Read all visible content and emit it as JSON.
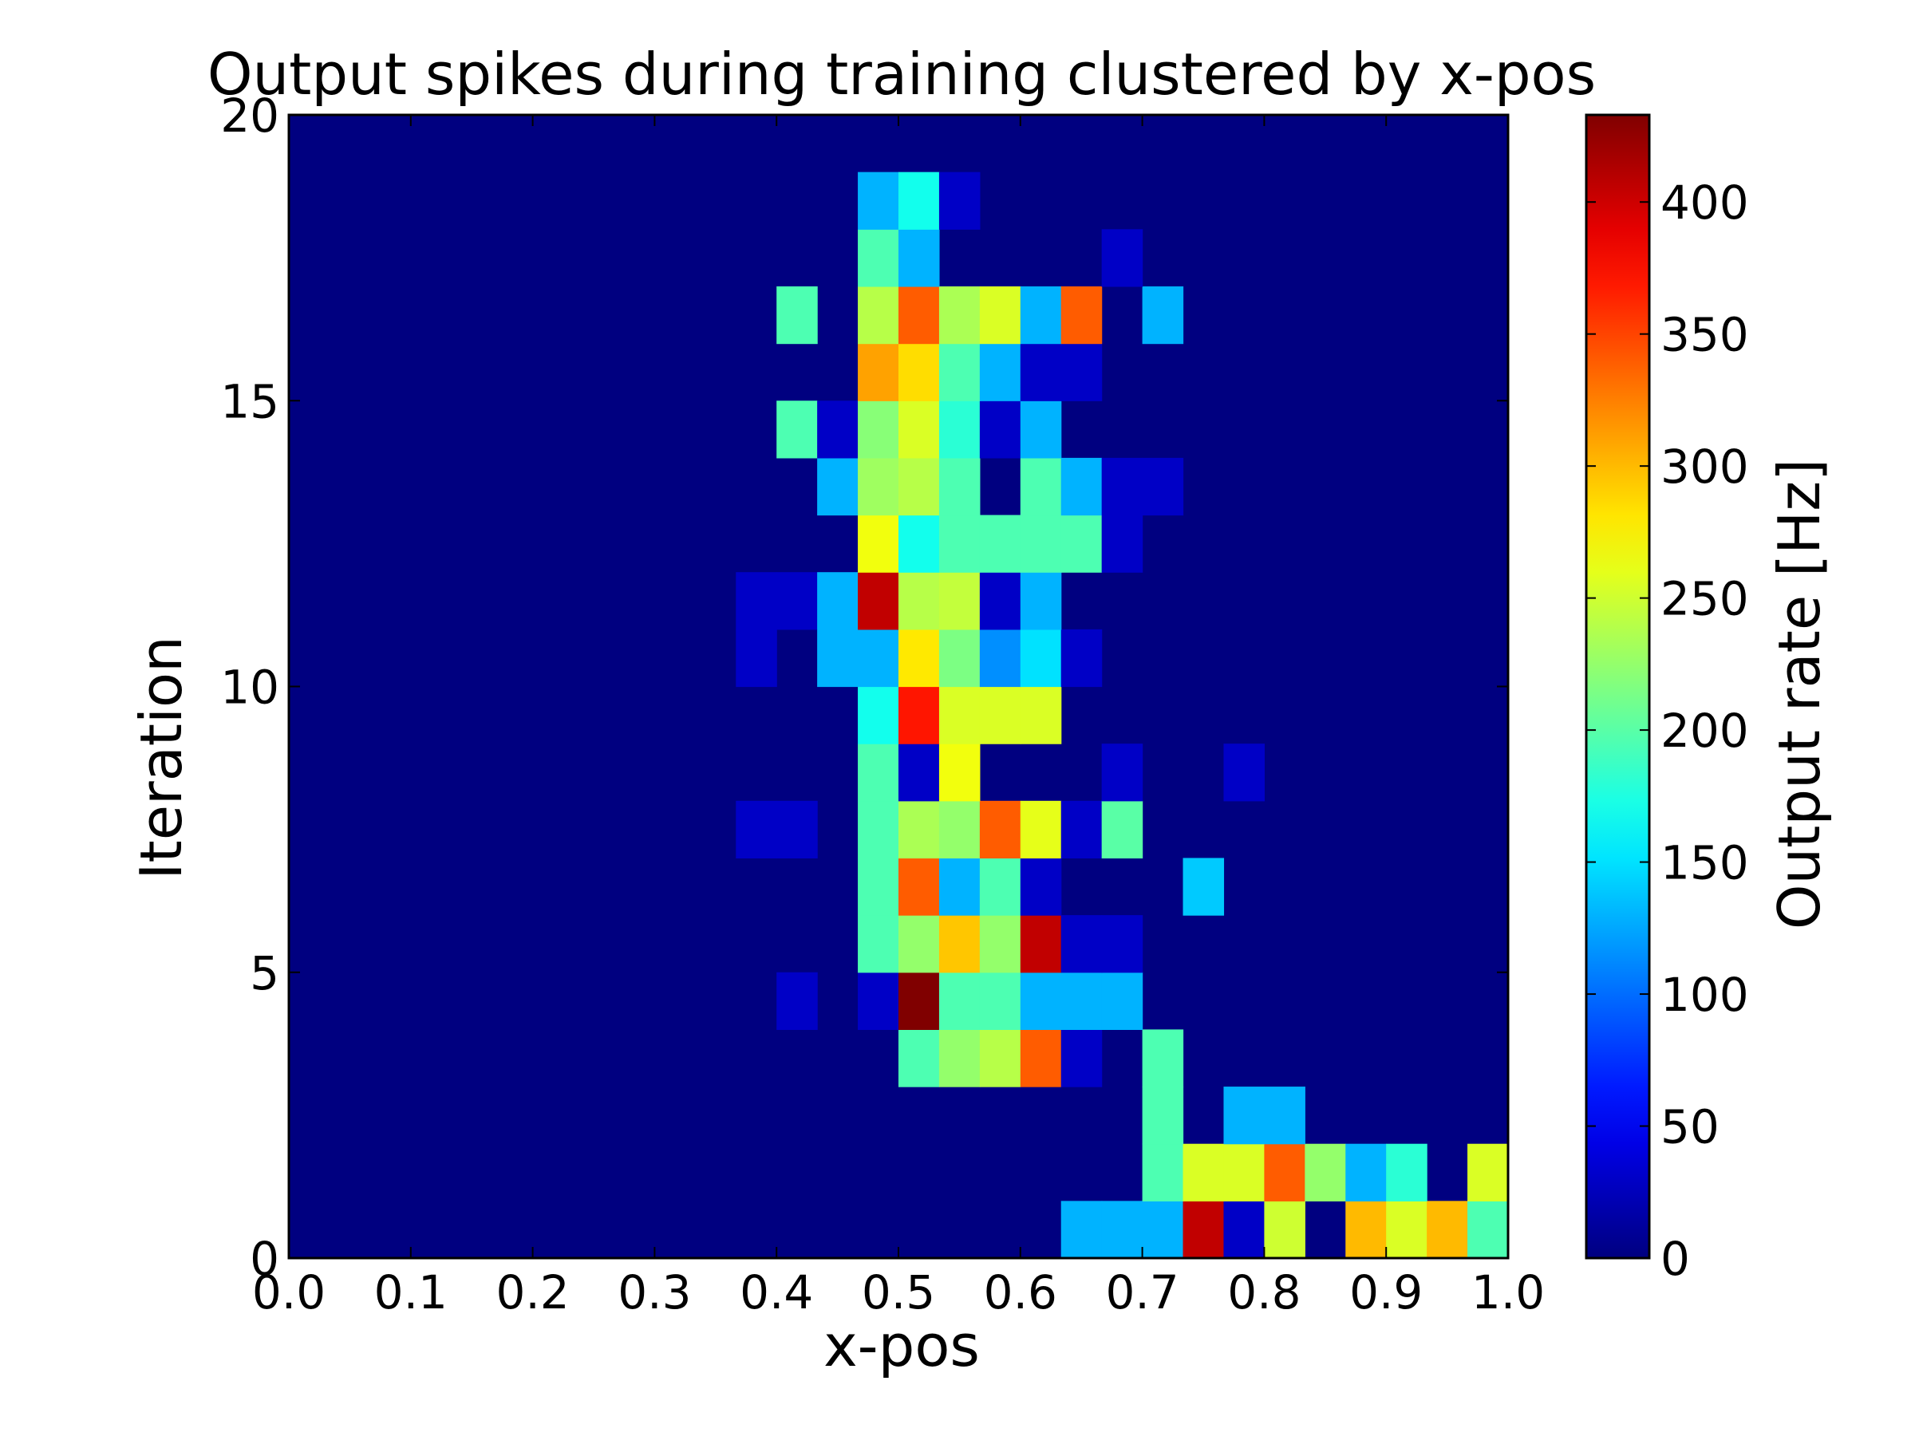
{
  "chart_data": {
    "type": "heatmap",
    "title": "Output spikes during training clustered by x-pos",
    "xlabel": "x-pos",
    "ylabel": "Iteration",
    "xlim": [
      0.0,
      1.0
    ],
    "ylim": [
      0,
      20
    ],
    "x_ticks": [
      "0.0",
      "0.1",
      "0.2",
      "0.3",
      "0.4",
      "0.5",
      "0.6",
      "0.7",
      "0.8",
      "0.9",
      "1.0"
    ],
    "y_ticks": [
      "0",
      "5",
      "10",
      "15",
      "20"
    ],
    "x_tick_values": [
      0.0,
      0.1,
      0.2,
      0.3,
      0.4,
      0.5,
      0.6,
      0.7,
      0.8,
      0.9,
      1.0
    ],
    "y_tick_values": [
      0,
      5,
      10,
      15,
      20
    ],
    "columns": 30,
    "rows": 20,
    "colormap": "jet",
    "colorbar": {
      "label": "Output rate [Hz]",
      "vmin": 0,
      "vmax": 433,
      "ticks": [
        "0",
        "50",
        "100",
        "150",
        "200",
        "250",
        "300",
        "350",
        "400"
      ],
      "tick_values": [
        0,
        50,
        100,
        150,
        200,
        250,
        300,
        350,
        400
      ]
    },
    "grid": false,
    "background_value": 0,
    "cells_note_units": "row = iteration index (0 = bottom), col = x-pos bin index (0..29), value = output rate in Hz",
    "cells": [
      {
        "row": 0,
        "col": 19,
        "value": 130
      },
      {
        "row": 0,
        "col": 20,
        "value": 130
      },
      {
        "row": 0,
        "col": 21,
        "value": 130
      },
      {
        "row": 0,
        "col": 22,
        "value": 405
      },
      {
        "row": 0,
        "col": 23,
        "value": 30
      },
      {
        "row": 0,
        "col": 24,
        "value": 250
      },
      {
        "row": 0,
        "col": 26,
        "value": 300
      },
      {
        "row": 0,
        "col": 27,
        "value": 255
      },
      {
        "row": 0,
        "col": 28,
        "value": 300
      },
      {
        "row": 0,
        "col": 29,
        "value": 195
      },
      {
        "row": 1,
        "col": 21,
        "value": 195
      },
      {
        "row": 1,
        "col": 22,
        "value": 255
      },
      {
        "row": 1,
        "col": 23,
        "value": 255
      },
      {
        "row": 1,
        "col": 24,
        "value": 340
      },
      {
        "row": 1,
        "col": 25,
        "value": 225
      },
      {
        "row": 1,
        "col": 26,
        "value": 130
      },
      {
        "row": 1,
        "col": 27,
        "value": 180
      },
      {
        "row": 1,
        "col": 29,
        "value": 255
      },
      {
        "row": 2,
        "col": 21,
        "value": 195
      },
      {
        "row": 2,
        "col": 23,
        "value": 130
      },
      {
        "row": 2,
        "col": 24,
        "value": 130
      },
      {
        "row": 3,
        "col": 15,
        "value": 195
      },
      {
        "row": 3,
        "col": 16,
        "value": 225
      },
      {
        "row": 3,
        "col": 17,
        "value": 240
      },
      {
        "row": 3,
        "col": 18,
        "value": 340
      },
      {
        "row": 3,
        "col": 19,
        "value": 30
      },
      {
        "row": 3,
        "col": 21,
        "value": 195
      },
      {
        "row": 4,
        "col": 12,
        "value": 30
      },
      {
        "row": 4,
        "col": 14,
        "value": 30
      },
      {
        "row": 4,
        "col": 15,
        "value": 433
      },
      {
        "row": 4,
        "col": 16,
        "value": 195
      },
      {
        "row": 4,
        "col": 17,
        "value": 195
      },
      {
        "row": 4,
        "col": 18,
        "value": 130
      },
      {
        "row": 4,
        "col": 19,
        "value": 130
      },
      {
        "row": 4,
        "col": 20,
        "value": 130
      },
      {
        "row": 5,
        "col": 14,
        "value": 195
      },
      {
        "row": 5,
        "col": 15,
        "value": 225
      },
      {
        "row": 5,
        "col": 16,
        "value": 295
      },
      {
        "row": 5,
        "col": 17,
        "value": 225
      },
      {
        "row": 5,
        "col": 18,
        "value": 405
      },
      {
        "row": 5,
        "col": 19,
        "value": 30
      },
      {
        "row": 5,
        "col": 20,
        "value": 30
      },
      {
        "row": 6,
        "col": 14,
        "value": 195
      },
      {
        "row": 6,
        "col": 15,
        "value": 340
      },
      {
        "row": 6,
        "col": 16,
        "value": 130
      },
      {
        "row": 6,
        "col": 17,
        "value": 195
      },
      {
        "row": 6,
        "col": 18,
        "value": 30
      },
      {
        "row": 6,
        "col": 22,
        "value": 140
      },
      {
        "row": 7,
        "col": 11,
        "value": 30
      },
      {
        "row": 7,
        "col": 12,
        "value": 30
      },
      {
        "row": 7,
        "col": 14,
        "value": 195
      },
      {
        "row": 7,
        "col": 15,
        "value": 235
      },
      {
        "row": 7,
        "col": 16,
        "value": 225
      },
      {
        "row": 7,
        "col": 17,
        "value": 340
      },
      {
        "row": 7,
        "col": 18,
        "value": 260
      },
      {
        "row": 7,
        "col": 19,
        "value": 30
      },
      {
        "row": 7,
        "col": 20,
        "value": 200
      },
      {
        "row": 8,
        "col": 14,
        "value": 195
      },
      {
        "row": 8,
        "col": 15,
        "value": 30
      },
      {
        "row": 8,
        "col": 16,
        "value": 265
      },
      {
        "row": 8,
        "col": 20,
        "value": 30
      },
      {
        "row": 8,
        "col": 23,
        "value": 30
      },
      {
        "row": 9,
        "col": 14,
        "value": 170
      },
      {
        "row": 9,
        "col": 15,
        "value": 370
      },
      {
        "row": 9,
        "col": 16,
        "value": 255
      },
      {
        "row": 9,
        "col": 17,
        "value": 255
      },
      {
        "row": 9,
        "col": 18,
        "value": 255
      },
      {
        "row": 10,
        "col": 11,
        "value": 30
      },
      {
        "row": 10,
        "col": 13,
        "value": 130
      },
      {
        "row": 10,
        "col": 14,
        "value": 130
      },
      {
        "row": 10,
        "col": 15,
        "value": 280
      },
      {
        "row": 10,
        "col": 16,
        "value": 215
      },
      {
        "row": 10,
        "col": 17,
        "value": 115
      },
      {
        "row": 10,
        "col": 18,
        "value": 150
      },
      {
        "row": 10,
        "col": 19,
        "value": 30
      },
      {
        "row": 11,
        "col": 11,
        "value": 30
      },
      {
        "row": 11,
        "col": 12,
        "value": 30
      },
      {
        "row": 11,
        "col": 13,
        "value": 130
      },
      {
        "row": 11,
        "col": 14,
        "value": 405
      },
      {
        "row": 11,
        "col": 15,
        "value": 240
      },
      {
        "row": 11,
        "col": 16,
        "value": 245
      },
      {
        "row": 11,
        "col": 17,
        "value": 30
      },
      {
        "row": 11,
        "col": 18,
        "value": 130
      },
      {
        "row": 12,
        "col": 14,
        "value": 265
      },
      {
        "row": 12,
        "col": 15,
        "value": 170
      },
      {
        "row": 12,
        "col": 16,
        "value": 195
      },
      {
        "row": 12,
        "col": 17,
        "value": 195
      },
      {
        "row": 12,
        "col": 18,
        "value": 195
      },
      {
        "row": 12,
        "col": 19,
        "value": 195
      },
      {
        "row": 12,
        "col": 20,
        "value": 30
      },
      {
        "row": 13,
        "col": 13,
        "value": 130
      },
      {
        "row": 13,
        "col": 14,
        "value": 230
      },
      {
        "row": 13,
        "col": 15,
        "value": 240
      },
      {
        "row": 13,
        "col": 16,
        "value": 195
      },
      {
        "row": 13,
        "col": 18,
        "value": 195
      },
      {
        "row": 13,
        "col": 19,
        "value": 130
      },
      {
        "row": 13,
        "col": 20,
        "value": 30
      },
      {
        "row": 13,
        "col": 21,
        "value": 30
      },
      {
        "row": 14,
        "col": 12,
        "value": 195
      },
      {
        "row": 14,
        "col": 13,
        "value": 30
      },
      {
        "row": 14,
        "col": 14,
        "value": 220
      },
      {
        "row": 14,
        "col": 15,
        "value": 255
      },
      {
        "row": 14,
        "col": 16,
        "value": 180
      },
      {
        "row": 14,
        "col": 17,
        "value": 30
      },
      {
        "row": 14,
        "col": 18,
        "value": 130
      },
      {
        "row": 15,
        "col": 14,
        "value": 310
      },
      {
        "row": 15,
        "col": 15,
        "value": 285
      },
      {
        "row": 15,
        "col": 16,
        "value": 195
      },
      {
        "row": 15,
        "col": 17,
        "value": 130
      },
      {
        "row": 15,
        "col": 18,
        "value": 30
      },
      {
        "row": 15,
        "col": 19,
        "value": 30
      },
      {
        "row": 16,
        "col": 12,
        "value": 195
      },
      {
        "row": 16,
        "col": 14,
        "value": 240
      },
      {
        "row": 16,
        "col": 15,
        "value": 340
      },
      {
        "row": 16,
        "col": 16,
        "value": 235
      },
      {
        "row": 16,
        "col": 17,
        "value": 255
      },
      {
        "row": 16,
        "col": 18,
        "value": 130
      },
      {
        "row": 16,
        "col": 19,
        "value": 340
      },
      {
        "row": 16,
        "col": 21,
        "value": 130
      },
      {
        "row": 17,
        "col": 14,
        "value": 195
      },
      {
        "row": 17,
        "col": 15,
        "value": 130
      },
      {
        "row": 17,
        "col": 20,
        "value": 30
      },
      {
        "row": 18,
        "col": 14,
        "value": 130
      },
      {
        "row": 18,
        "col": 15,
        "value": 170
      },
      {
        "row": 18,
        "col": 16,
        "value": 30
      }
    ]
  }
}
